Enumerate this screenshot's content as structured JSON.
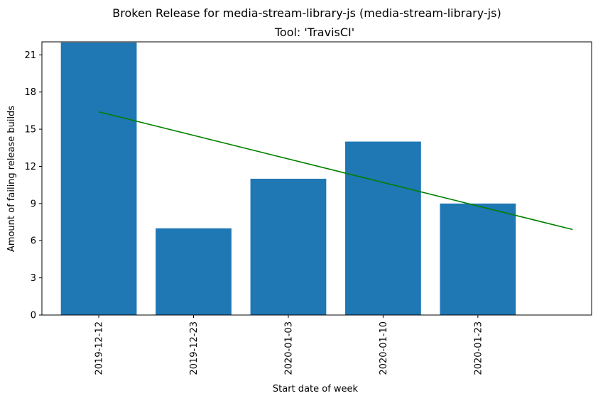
{
  "chart_data": {
    "type": "bar",
    "suptitle": "Broken Release for media-stream-library-js (media-stream-library-js)",
    "title": "Tool: 'TravisCI'",
    "xlabel": "Start date of week",
    "ylabel": "Amount of failing release builds",
    "categories": [
      "2019-12-12",
      "2019-12-23",
      "2020-01-03",
      "2020-01-10",
      "2020-01-23"
    ],
    "values": [
      22,
      7,
      11,
      14,
      9
    ],
    "ylim": [
      0,
      22.05
    ],
    "yticks": [
      0,
      3,
      6,
      9,
      12,
      15,
      18,
      21
    ],
    "bar_color": "#1f77b4",
    "trend": {
      "color": "#008000",
      "start": {
        "x": "2019-12-12",
        "y": 16.4
      },
      "end": {
        "y": 6.9
      }
    },
    "grid": false,
    "legend": "none"
  }
}
